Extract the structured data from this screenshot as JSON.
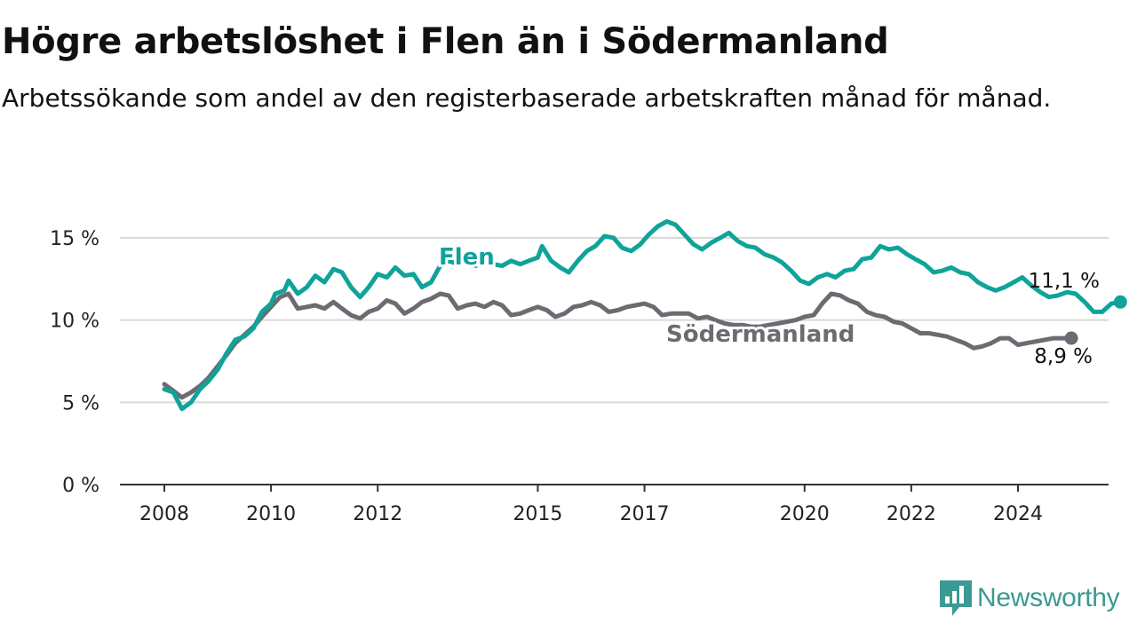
{
  "title": "Högre arbetslöshet i Flen än i Södermanland",
  "subtitle": "Arbetssökande som andel av den registerbaserade arbetskraften månad för månad.",
  "brand": {
    "name": "Newsworthy",
    "icon": "newsworthy-logo-icon"
  },
  "colors": {
    "flen": "#0fa39a",
    "sodermanland": "#6d6a72",
    "grid": "#d9d9d9",
    "axis": "#333333",
    "brand": "#3b9a93"
  },
  "chart_data": {
    "type": "line",
    "title": "Högre arbetslöshet i Flen än i Södermanland",
    "xlabel": "",
    "ylabel": "",
    "xlim": [
      2008.0,
      2025.0
    ],
    "ylim": [
      0,
      15
    ],
    "y_ticks": [
      {
        "value": 0,
        "label": "0 %"
      },
      {
        "value": 5,
        "label": "5 %"
      },
      {
        "value": 10,
        "label": "10 %"
      },
      {
        "value": 15,
        "label": "15 %"
      }
    ],
    "x_ticks": [
      {
        "value": 2008,
        "label": "2008"
      },
      {
        "value": 2010,
        "label": "2010"
      },
      {
        "value": 2012,
        "label": "2012"
      },
      {
        "value": 2015,
        "label": "2015"
      },
      {
        "value": 2017,
        "label": "2017"
      },
      {
        "value": 2020,
        "label": "2020"
      },
      {
        "value": 2022,
        "label": "2022"
      },
      {
        "value": 2024,
        "label": "2024"
      }
    ],
    "grid": true,
    "legend": "inline labels",
    "series": [
      {
        "name": "Flen",
        "end_label": "11,1 %",
        "points": [
          [
            2008.0,
            5.8
          ],
          [
            2008.17,
            5.6
          ],
          [
            2008.33,
            4.6
          ],
          [
            2008.5,
            5.0
          ],
          [
            2008.67,
            5.8
          ],
          [
            2008.83,
            6.3
          ],
          [
            2009.0,
            7.0
          ],
          [
            2009.17,
            8.0
          ],
          [
            2009.33,
            8.8
          ],
          [
            2009.5,
            9.0
          ],
          [
            2009.67,
            9.5
          ],
          [
            2009.83,
            10.5
          ],
          [
            2010.0,
            11.0
          ],
          [
            2010.08,
            11.6
          ],
          [
            2010.25,
            11.8
          ],
          [
            2010.33,
            12.4
          ],
          [
            2010.5,
            11.6
          ],
          [
            2010.67,
            12.0
          ],
          [
            2010.83,
            12.7
          ],
          [
            2011.0,
            12.3
          ],
          [
            2011.17,
            13.1
          ],
          [
            2011.33,
            12.9
          ],
          [
            2011.5,
            12.0
          ],
          [
            2011.67,
            11.4
          ],
          [
            2011.83,
            12.0
          ],
          [
            2012.0,
            12.8
          ],
          [
            2012.17,
            12.6
          ],
          [
            2012.33,
            13.2
          ],
          [
            2012.5,
            12.7
          ],
          [
            2012.67,
            12.8
          ],
          [
            2012.83,
            12.0
          ],
          [
            2013.0,
            12.3
          ],
          [
            2013.17,
            13.3
          ],
          [
            2013.33,
            13.6
          ],
          [
            2013.5,
            13.4
          ],
          [
            2013.67,
            13.8
          ],
          [
            2013.83,
            13.3
          ],
          [
            2014.0,
            13.5
          ],
          [
            2014.33,
            13.3
          ],
          [
            2014.5,
            13.6
          ],
          [
            2014.67,
            13.4
          ],
          [
            2014.83,
            13.6
          ],
          [
            2015.0,
            13.8
          ],
          [
            2015.08,
            14.5
          ],
          [
            2015.25,
            13.6
          ],
          [
            2015.42,
            13.2
          ],
          [
            2015.58,
            12.9
          ],
          [
            2015.75,
            13.6
          ],
          [
            2015.92,
            14.2
          ],
          [
            2016.08,
            14.5
          ],
          [
            2016.25,
            15.1
          ],
          [
            2016.42,
            15.0
          ],
          [
            2016.58,
            14.4
          ],
          [
            2016.75,
            14.2
          ],
          [
            2016.92,
            14.6
          ],
          [
            2017.08,
            15.2
          ],
          [
            2017.25,
            15.7
          ],
          [
            2017.42,
            16.0
          ],
          [
            2017.58,
            15.8
          ],
          [
            2017.75,
            15.2
          ],
          [
            2017.92,
            14.6
          ],
          [
            2018.08,
            14.3
          ],
          [
            2018.25,
            14.7
          ],
          [
            2018.42,
            15.0
          ],
          [
            2018.58,
            15.3
          ],
          [
            2018.75,
            14.8
          ],
          [
            2018.92,
            14.5
          ],
          [
            2019.08,
            14.4
          ],
          [
            2019.25,
            14.0
          ],
          [
            2019.42,
            13.8
          ],
          [
            2019.58,
            13.5
          ],
          [
            2019.75,
            13.0
          ],
          [
            2019.92,
            12.4
          ],
          [
            2020.08,
            12.2
          ],
          [
            2020.25,
            12.6
          ],
          [
            2020.42,
            12.8
          ],
          [
            2020.58,
            12.6
          ],
          [
            2020.75,
            13.0
          ],
          [
            2020.92,
            13.1
          ],
          [
            2021.08,
            13.7
          ],
          [
            2021.25,
            13.8
          ],
          [
            2021.42,
            14.5
          ],
          [
            2021.58,
            14.3
          ],
          [
            2021.75,
            14.4
          ],
          [
            2021.92,
            14.0
          ],
          [
            2022.08,
            13.7
          ],
          [
            2022.25,
            13.4
          ],
          [
            2022.42,
            12.9
          ],
          [
            2022.58,
            13.0
          ],
          [
            2022.75,
            13.2
          ],
          [
            2022.92,
            12.9
          ],
          [
            2023.08,
            12.8
          ],
          [
            2023.25,
            12.3
          ],
          [
            2023.42,
            12.0
          ],
          [
            2023.58,
            11.8
          ],
          [
            2023.75,
            12.0
          ],
          [
            2023.92,
            12.3
          ],
          [
            2024.08,
            12.6
          ],
          [
            2024.25,
            12.1
          ],
          [
            2024.42,
            11.7
          ],
          [
            2024.58,
            11.4
          ],
          [
            2024.75,
            11.5
          ],
          [
            2024.92,
            11.7
          ],
          [
            2025.08,
            11.6
          ],
          [
            2025.25,
            11.1
          ],
          [
            2025.42,
            10.5
          ],
          [
            2025.58,
            10.5
          ],
          [
            2025.75,
            11.0
          ],
          [
            2025.92,
            11.1
          ]
        ]
      },
      {
        "name": "Södermanland",
        "end_label": "8,9 %",
        "points": [
          [
            2008.0,
            6.1
          ],
          [
            2008.17,
            5.7
          ],
          [
            2008.33,
            5.3
          ],
          [
            2008.5,
            5.6
          ],
          [
            2008.67,
            6.0
          ],
          [
            2008.83,
            6.5
          ],
          [
            2009.0,
            7.2
          ],
          [
            2009.17,
            7.9
          ],
          [
            2009.33,
            8.6
          ],
          [
            2009.5,
            9.1
          ],
          [
            2009.67,
            9.6
          ],
          [
            2009.83,
            10.2
          ],
          [
            2010.0,
            10.8
          ],
          [
            2010.17,
            11.4
          ],
          [
            2010.33,
            11.6
          ],
          [
            2010.5,
            10.7
          ],
          [
            2010.67,
            10.8
          ],
          [
            2010.83,
            10.9
          ],
          [
            2011.0,
            10.7
          ],
          [
            2011.17,
            11.1
          ],
          [
            2011.33,
            10.7
          ],
          [
            2011.5,
            10.3
          ],
          [
            2011.67,
            10.1
          ],
          [
            2011.83,
            10.5
          ],
          [
            2012.0,
            10.7
          ],
          [
            2012.17,
            11.2
          ],
          [
            2012.33,
            11.0
          ],
          [
            2012.5,
            10.4
          ],
          [
            2012.67,
            10.7
          ],
          [
            2012.83,
            11.1
          ],
          [
            2013.0,
            11.3
          ],
          [
            2013.17,
            11.6
          ],
          [
            2013.33,
            11.5
          ],
          [
            2013.5,
            10.7
          ],
          [
            2013.67,
            10.9
          ],
          [
            2013.83,
            11.0
          ],
          [
            2014.0,
            10.8
          ],
          [
            2014.17,
            11.1
          ],
          [
            2014.33,
            10.9
          ],
          [
            2014.5,
            10.3
          ],
          [
            2014.67,
            10.4
          ],
          [
            2014.83,
            10.6
          ],
          [
            2015.0,
            10.8
          ],
          [
            2015.17,
            10.6
          ],
          [
            2015.33,
            10.2
          ],
          [
            2015.5,
            10.4
          ],
          [
            2015.67,
            10.8
          ],
          [
            2015.83,
            10.9
          ],
          [
            2016.0,
            11.1
          ],
          [
            2016.17,
            10.9
          ],
          [
            2016.33,
            10.5
          ],
          [
            2016.5,
            10.6
          ],
          [
            2016.67,
            10.8
          ],
          [
            2016.83,
            10.9
          ],
          [
            2017.0,
            11.0
          ],
          [
            2017.17,
            10.8
          ],
          [
            2017.33,
            10.3
          ],
          [
            2017.5,
            10.4
          ],
          [
            2017.67,
            10.4
          ],
          [
            2017.83,
            10.4
          ],
          [
            2018.0,
            10.1
          ],
          [
            2018.17,
            10.2
          ],
          [
            2018.33,
            10.0
          ],
          [
            2018.5,
            9.8
          ],
          [
            2018.67,
            9.7
          ],
          [
            2018.83,
            9.7
          ],
          [
            2019.0,
            9.6
          ],
          [
            2019.17,
            9.6
          ],
          [
            2019.33,
            9.7
          ],
          [
            2019.5,
            9.8
          ],
          [
            2019.67,
            9.9
          ],
          [
            2019.83,
            10.0
          ],
          [
            2020.0,
            10.2
          ],
          [
            2020.17,
            10.3
          ],
          [
            2020.33,
            11.0
          ],
          [
            2020.5,
            11.6
          ],
          [
            2020.67,
            11.5
          ],
          [
            2020.83,
            11.2
          ],
          [
            2021.0,
            11.0
          ],
          [
            2021.17,
            10.5
          ],
          [
            2021.33,
            10.3
          ],
          [
            2021.5,
            10.2
          ],
          [
            2021.67,
            9.9
          ],
          [
            2021.83,
            9.8
          ],
          [
            2022.0,
            9.5
          ],
          [
            2022.17,
            9.2
          ],
          [
            2022.33,
            9.2
          ],
          [
            2022.5,
            9.1
          ],
          [
            2022.67,
            9.0
          ],
          [
            2022.83,
            8.8
          ],
          [
            2023.0,
            8.6
          ],
          [
            2023.17,
            8.3
          ],
          [
            2023.33,
            8.4
          ],
          [
            2023.5,
            8.6
          ],
          [
            2023.67,
            8.9
          ],
          [
            2023.83,
            8.9
          ],
          [
            2024.0,
            8.5
          ],
          [
            2024.17,
            8.6
          ],
          [
            2024.33,
            8.7
          ],
          [
            2024.5,
            8.8
          ],
          [
            2024.67,
            8.9
          ],
          [
            2024.83,
            8.9
          ],
          [
            2025.0,
            8.9
          ]
        ]
      }
    ]
  }
}
